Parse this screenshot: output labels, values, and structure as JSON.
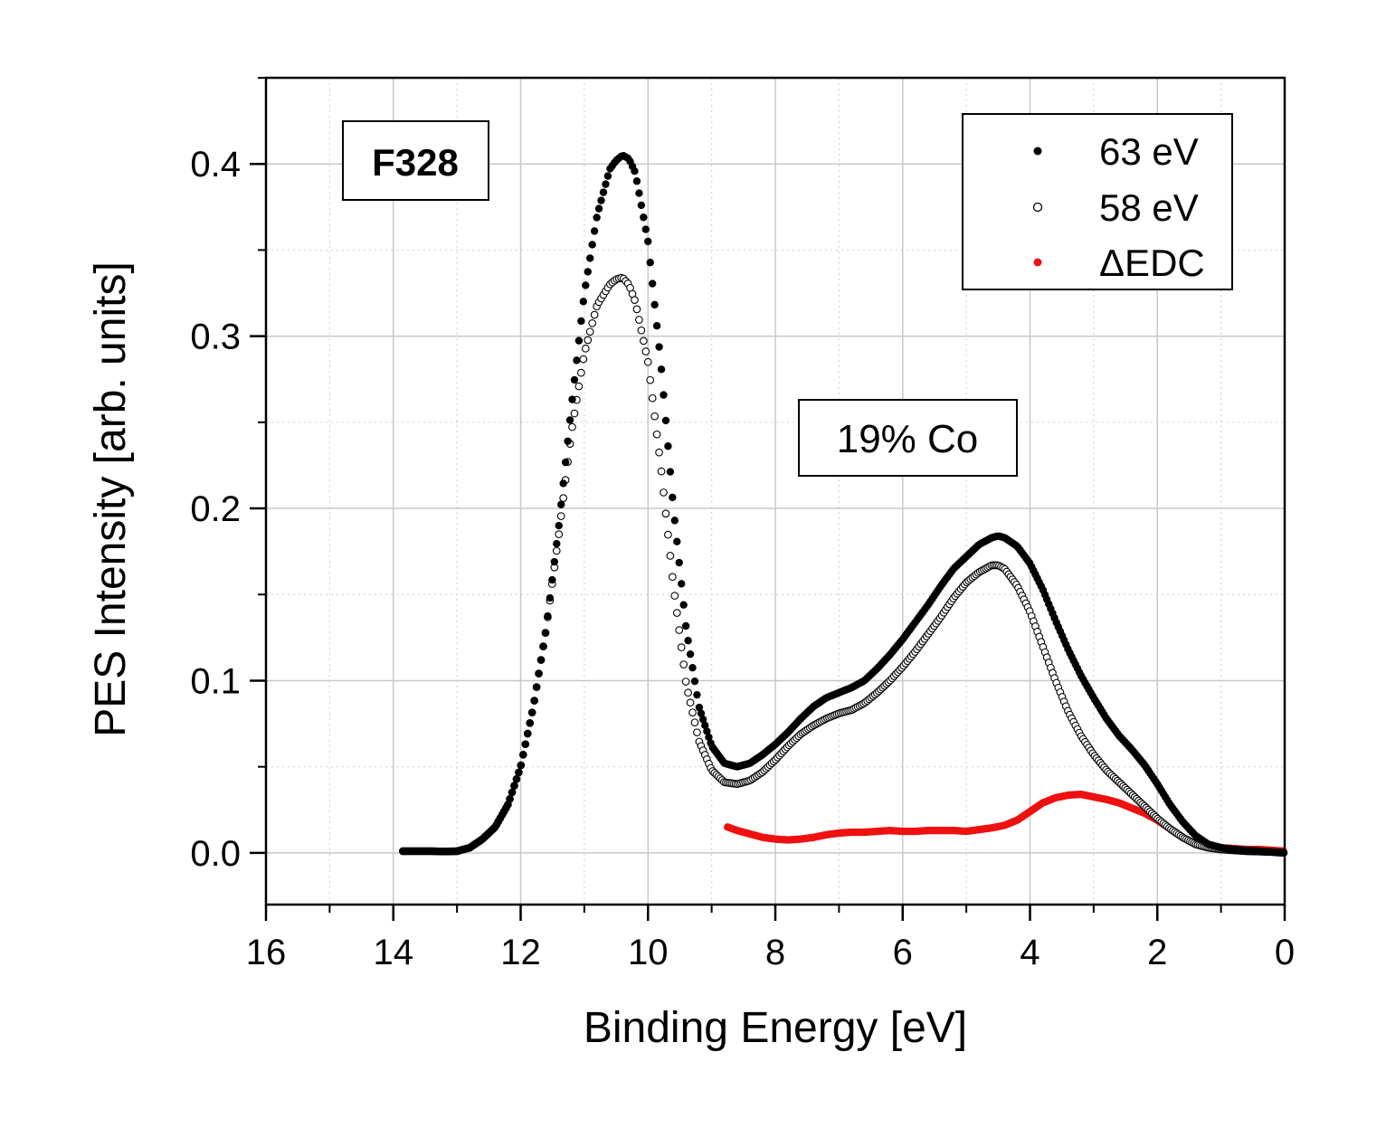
{
  "chart_data": {
    "type": "scatter",
    "title": "",
    "xlabel": "Binding Energy [eV]",
    "ylabel": "PES Intensity [arb. units]",
    "xlim": [
      16,
      0
    ],
    "ylim": [
      -0.03,
      0.45
    ],
    "x_reversed": true,
    "grid": true,
    "x_ticks": [
      16,
      14,
      12,
      10,
      8,
      6,
      4,
      2,
      0
    ],
    "x_tick_labels": [
      "16",
      "14",
      "12",
      "10",
      "8",
      "6",
      "4",
      "2",
      "0"
    ],
    "y_ticks": [
      0.0,
      0.1,
      0.2,
      0.3,
      0.4
    ],
    "y_tick_labels": [
      "0.0",
      "0.1",
      "0.2",
      "0.3",
      "0.4"
    ],
    "legend_position": "top-right",
    "annotations": [
      {
        "id": "sample",
        "text": "F328"
      },
      {
        "id": "composition",
        "text": "19% Co"
      }
    ],
    "series": [
      {
        "name": "63 eV",
        "marker": "filled-circle",
        "color": "#000000",
        "x": [
          13.85,
          13.6,
          13.4,
          13.2,
          13.0,
          12.8,
          12.6,
          12.4,
          12.2,
          12.0,
          11.8,
          11.6,
          11.4,
          11.2,
          11.0,
          10.8,
          10.6,
          10.5,
          10.4,
          10.3,
          10.2,
          10.0,
          9.8,
          9.6,
          9.4,
          9.2,
          9.0,
          8.8,
          8.6,
          8.4,
          8.2,
          8.0,
          7.8,
          7.6,
          7.4,
          7.2,
          7.0,
          6.8,
          6.6,
          6.4,
          6.2,
          6.0,
          5.8,
          5.6,
          5.4,
          5.2,
          5.0,
          4.8,
          4.6,
          4.5,
          4.4,
          4.2,
          4.0,
          3.8,
          3.6,
          3.4,
          3.2,
          3.0,
          2.8,
          2.6,
          2.4,
          2.2,
          2.0,
          1.8,
          1.6,
          1.4,
          1.2,
          1.0,
          0.8,
          0.6,
          0.4,
          0.2,
          0.0
        ],
        "values": [
          0.001,
          0.001,
          0.001,
          0.0008,
          0.001,
          0.003,
          0.008,
          0.015,
          0.028,
          0.05,
          0.085,
          0.13,
          0.19,
          0.26,
          0.325,
          0.37,
          0.397,
          0.402,
          0.405,
          0.403,
          0.395,
          0.355,
          0.285,
          0.2,
          0.13,
          0.085,
          0.062,
          0.052,
          0.05,
          0.052,
          0.057,
          0.063,
          0.07,
          0.078,
          0.085,
          0.09,
          0.093,
          0.096,
          0.1,
          0.107,
          0.115,
          0.124,
          0.134,
          0.144,
          0.155,
          0.165,
          0.172,
          0.179,
          0.183,
          0.184,
          0.183,
          0.178,
          0.168,
          0.153,
          0.135,
          0.118,
          0.103,
          0.09,
          0.078,
          0.068,
          0.06,
          0.051,
          0.04,
          0.028,
          0.018,
          0.01,
          0.005,
          0.003,
          0.002,
          0.0015,
          0.001,
          0.0005,
          0.0
        ]
      },
      {
        "name": "58 eV",
        "marker": "open-circle",
        "color": "#000000",
        "x": [
          13.85,
          13.6,
          13.4,
          13.2,
          13.0,
          12.8,
          12.6,
          12.4,
          12.2,
          12.0,
          11.8,
          11.6,
          11.4,
          11.2,
          11.0,
          10.8,
          10.6,
          10.5,
          10.4,
          10.3,
          10.2,
          10.0,
          9.8,
          9.6,
          9.4,
          9.2,
          9.0,
          8.8,
          8.6,
          8.4,
          8.2,
          8.0,
          7.8,
          7.6,
          7.4,
          7.2,
          7.0,
          6.8,
          6.6,
          6.4,
          6.2,
          6.0,
          5.8,
          5.6,
          5.4,
          5.2,
          5.0,
          4.8,
          4.6,
          4.5,
          4.4,
          4.2,
          4.0,
          3.8,
          3.6,
          3.4,
          3.2,
          3.0,
          2.8,
          2.6,
          2.4,
          2.2,
          2.0,
          1.8,
          1.6,
          1.4,
          1.2,
          1.0,
          0.8,
          0.6,
          0.4,
          0.2,
          0.0
        ],
        "values": [
          0.001,
          0.001,
          0.001,
          0.0008,
          0.001,
          0.003,
          0.008,
          0.015,
          0.028,
          0.05,
          0.085,
          0.13,
          0.185,
          0.245,
          0.29,
          0.318,
          0.33,
          0.333,
          0.334,
          0.33,
          0.32,
          0.285,
          0.225,
          0.155,
          0.098,
          0.065,
          0.048,
          0.041,
          0.04,
          0.042,
          0.047,
          0.054,
          0.062,
          0.069,
          0.074,
          0.078,
          0.081,
          0.083,
          0.087,
          0.093,
          0.1,
          0.108,
          0.117,
          0.127,
          0.137,
          0.148,
          0.157,
          0.163,
          0.167,
          0.167,
          0.165,
          0.155,
          0.14,
          0.12,
          0.1,
          0.082,
          0.068,
          0.057,
          0.048,
          0.041,
          0.034,
          0.027,
          0.02,
          0.014,
          0.009,
          0.005,
          0.003,
          0.002,
          0.0015,
          0.001,
          0.0008,
          0.0005,
          0.0
        ]
      },
      {
        "name": "ΔEDC",
        "marker": "filled-circle",
        "color": "#ee1111",
        "x": [
          8.75,
          8.6,
          8.4,
          8.2,
          8.0,
          7.8,
          7.6,
          7.4,
          7.2,
          7.0,
          6.8,
          6.6,
          6.4,
          6.2,
          6.0,
          5.8,
          5.6,
          5.4,
          5.2,
          5.0,
          4.8,
          4.6,
          4.4,
          4.2,
          4.0,
          3.8,
          3.6,
          3.4,
          3.2,
          3.0,
          2.8,
          2.6,
          2.4,
          2.2,
          2.0,
          1.8,
          1.6,
          1.4,
          1.2,
          1.0,
          0.8,
          0.6,
          0.4,
          0.2,
          0.0
        ],
        "values": [
          0.015,
          0.013,
          0.011,
          0.009,
          0.008,
          0.0075,
          0.008,
          0.009,
          0.0105,
          0.0115,
          0.012,
          0.012,
          0.0125,
          0.013,
          0.0125,
          0.0125,
          0.013,
          0.013,
          0.013,
          0.0125,
          0.0135,
          0.0145,
          0.016,
          0.019,
          0.024,
          0.029,
          0.032,
          0.0335,
          0.034,
          0.0325,
          0.031,
          0.029,
          0.026,
          0.023,
          0.019,
          0.014,
          0.009,
          0.005,
          0.004,
          0.003,
          0.0025,
          0.002,
          0.002,
          0.0015,
          0.001
        ]
      }
    ]
  }
}
